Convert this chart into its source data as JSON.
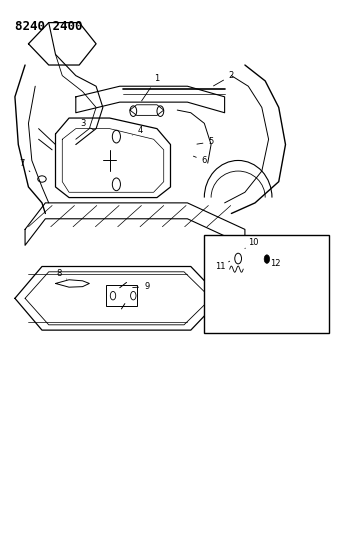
{
  "title": "8240 2400",
  "background_color": "#ffffff",
  "line_color": "#000000",
  "figsize": [
    3.41,
    5.33
  ],
  "dpi": 100
}
